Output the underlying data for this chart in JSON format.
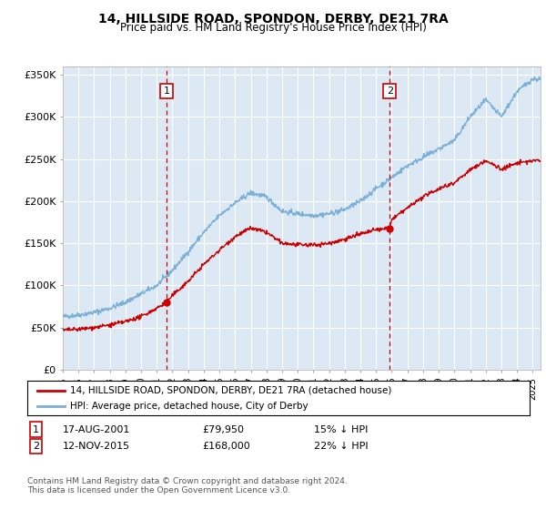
{
  "title": "14, HILLSIDE ROAD, SPONDON, DERBY, DE21 7RA",
  "subtitle": "Price paid vs. HM Land Registry's House Price Index (HPI)",
  "background_color": "#dce9f5",
  "hpi_color": "#7bafd4",
  "price_color": "#cc0000",
  "vline_color": "#cc0000",
  "ylim": [
    0,
    360000
  ],
  "yticks": [
    0,
    50000,
    100000,
    150000,
    200000,
    250000,
    300000,
    350000
  ],
  "ytick_labels": [
    "£0",
    "£50K",
    "£100K",
    "£150K",
    "£200K",
    "£250K",
    "£300K",
    "£350K"
  ],
  "sale1": {
    "date": 2001.62,
    "price": 79950,
    "label": "1",
    "text": "17-AUG-2001",
    "pct": "15% ↓ HPI"
  },
  "sale2": {
    "date": 2015.87,
    "price": 168000,
    "label": "2",
    "text": "12-NOV-2015",
    "pct": "22% ↓ HPI"
  },
  "legend_line1": "14, HILLSIDE ROAD, SPONDON, DERBY, DE21 7RA (detached house)",
  "legend_line2": "HPI: Average price, detached house, City of Derby",
  "footer": "Contains HM Land Registry data © Crown copyright and database right 2024.\nThis data is licensed under the Open Government Licence v3.0.",
  "xstart": 1995.0,
  "xend": 2025.5
}
